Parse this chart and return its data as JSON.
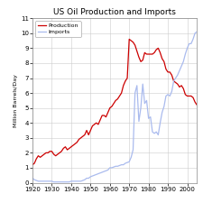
{
  "title": "US Oil Production and Imports",
  "ylabel": "Million Barrels/Day",
  "xlim": [
    1920,
    2005
  ],
  "ylim": [
    0,
    11
  ],
  "yticks": [
    0,
    1,
    2,
    3,
    4,
    5,
    6,
    7,
    8,
    9,
    10,
    11
  ],
  "xticks": [
    1920,
    1930,
    1940,
    1950,
    1960,
    1970,
    1980,
    1990,
    2000
  ],
  "production_color": "#cc0000",
  "imports_color": "#aabbee",
  "bg_color": "#ffffff",
  "grid_color": "#cccccc",
  "production": [
    [
      1920,
      1.2
    ],
    [
      1921,
      1.3
    ],
    [
      1922,
      1.6
    ],
    [
      1923,
      1.8
    ],
    [
      1924,
      1.7
    ],
    [
      1925,
      1.8
    ],
    [
      1926,
      1.9
    ],
    [
      1927,
      2.0
    ],
    [
      1928,
      2.0
    ],
    [
      1929,
      2.1
    ],
    [
      1930,
      2.1
    ],
    [
      1931,
      1.9
    ],
    [
      1932,
      1.8
    ],
    [
      1933,
      1.9
    ],
    [
      1934,
      2.0
    ],
    [
      1935,
      2.1
    ],
    [
      1936,
      2.3
    ],
    [
      1937,
      2.4
    ],
    [
      1938,
      2.2
    ],
    [
      1939,
      2.3
    ],
    [
      1940,
      2.4
    ],
    [
      1941,
      2.5
    ],
    [
      1942,
      2.6
    ],
    [
      1943,
      2.7
    ],
    [
      1944,
      2.9
    ],
    [
      1945,
      3.0
    ],
    [
      1946,
      3.1
    ],
    [
      1947,
      3.2
    ],
    [
      1948,
      3.5
    ],
    [
      1949,
      3.2
    ],
    [
      1950,
      3.5
    ],
    [
      1951,
      3.8
    ],
    [
      1952,
      3.9
    ],
    [
      1953,
      4.0
    ],
    [
      1954,
      3.9
    ],
    [
      1955,
      4.2
    ],
    [
      1956,
      4.5
    ],
    [
      1957,
      4.5
    ],
    [
      1958,
      4.4
    ],
    [
      1959,
      4.7
    ],
    [
      1960,
      5.0
    ],
    [
      1961,
      5.1
    ],
    [
      1962,
      5.3
    ],
    [
      1963,
      5.5
    ],
    [
      1964,
      5.6
    ],
    [
      1965,
      5.8
    ],
    [
      1966,
      6.0
    ],
    [
      1967,
      6.5
    ],
    [
      1968,
      6.8
    ],
    [
      1969,
      7.0
    ],
    [
      1970,
      9.6
    ],
    [
      1971,
      9.5
    ],
    [
      1972,
      9.4
    ],
    [
      1973,
      9.2
    ],
    [
      1974,
      8.8
    ],
    [
      1975,
      8.4
    ],
    [
      1976,
      8.1
    ],
    [
      1977,
      8.2
    ],
    [
      1978,
      8.7
    ],
    [
      1979,
      8.6
    ],
    [
      1980,
      8.6
    ],
    [
      1981,
      8.6
    ],
    [
      1982,
      8.6
    ],
    [
      1983,
      8.7
    ],
    [
      1984,
      8.9
    ],
    [
      1985,
      9.0
    ],
    [
      1986,
      8.7
    ],
    [
      1987,
      8.3
    ],
    [
      1988,
      8.1
    ],
    [
      1989,
      7.6
    ],
    [
      1990,
      7.4
    ],
    [
      1991,
      7.4
    ],
    [
      1992,
      7.2
    ],
    [
      1993,
      6.8
    ],
    [
      1994,
      6.7
    ],
    [
      1995,
      6.6
    ],
    [
      1996,
      6.4
    ],
    [
      1997,
      6.5
    ],
    [
      1998,
      6.3
    ],
    [
      1999,
      5.9
    ],
    [
      2000,
      5.8
    ],
    [
      2001,
      5.8
    ],
    [
      2002,
      5.8
    ],
    [
      2003,
      5.7
    ],
    [
      2004,
      5.4
    ],
    [
      2005,
      5.2
    ]
  ],
  "imports": [
    [
      1920,
      0.3
    ],
    [
      1921,
      0.2
    ],
    [
      1922,
      0.15
    ],
    [
      1923,
      0.1
    ],
    [
      1924,
      0.1
    ],
    [
      1925,
      0.1
    ],
    [
      1926,
      0.1
    ],
    [
      1927,
      0.1
    ],
    [
      1928,
      0.1
    ],
    [
      1929,
      0.1
    ],
    [
      1930,
      0.1
    ],
    [
      1931,
      0.05
    ],
    [
      1932,
      0.05
    ],
    [
      1933,
      0.05
    ],
    [
      1934,
      0.05
    ],
    [
      1935,
      0.05
    ],
    [
      1936,
      0.05
    ],
    [
      1937,
      0.05
    ],
    [
      1938,
      0.05
    ],
    [
      1939,
      0.05
    ],
    [
      1940,
      0.1
    ],
    [
      1941,
      0.1
    ],
    [
      1942,
      0.1
    ],
    [
      1943,
      0.1
    ],
    [
      1944,
      0.1
    ],
    [
      1945,
      0.1
    ],
    [
      1946,
      0.15
    ],
    [
      1947,
      0.2
    ],
    [
      1948,
      0.3
    ],
    [
      1949,
      0.3
    ],
    [
      1950,
      0.4
    ],
    [
      1951,
      0.45
    ],
    [
      1952,
      0.5
    ],
    [
      1953,
      0.55
    ],
    [
      1954,
      0.6
    ],
    [
      1955,
      0.65
    ],
    [
      1956,
      0.7
    ],
    [
      1957,
      0.75
    ],
    [
      1958,
      0.8
    ],
    [
      1959,
      0.85
    ],
    [
      1960,
      1.0
    ],
    [
      1961,
      1.0
    ],
    [
      1962,
      1.05
    ],
    [
      1963,
      1.1
    ],
    [
      1964,
      1.1
    ],
    [
      1965,
      1.15
    ],
    [
      1966,
      1.2
    ],
    [
      1967,
      1.2
    ],
    [
      1968,
      1.3
    ],
    [
      1969,
      1.35
    ],
    [
      1970,
      1.4
    ],
    [
      1971,
      1.7
    ],
    [
      1972,
      2.2
    ],
    [
      1973,
      6.0
    ],
    [
      1974,
      6.5
    ],
    [
      1975,
      4.1
    ],
    [
      1976,
      5.0
    ],
    [
      1977,
      6.6
    ],
    [
      1978,
      5.3
    ],
    [
      1979,
      5.5
    ],
    [
      1980,
      4.3
    ],
    [
      1981,
      4.4
    ],
    [
      1982,
      3.4
    ],
    [
      1983,
      3.3
    ],
    [
      1984,
      3.4
    ],
    [
      1985,
      3.2
    ],
    [
      1986,
      4.0
    ],
    [
      1987,
      4.7
    ],
    [
      1988,
      5.1
    ],
    [
      1989,
      5.8
    ],
    [
      1990,
      5.9
    ],
    [
      1991,
      5.8
    ],
    [
      1992,
      6.1
    ],
    [
      1993,
      6.8
    ],
    [
      1994,
      7.0
    ],
    [
      1995,
      7.2
    ],
    [
      1996,
      7.5
    ],
    [
      1997,
      7.8
    ],
    [
      1998,
      8.1
    ],
    [
      1999,
      8.6
    ],
    [
      2000,
      9.0
    ],
    [
      2001,
      9.3
    ],
    [
      2002,
      9.3
    ],
    [
      2003,
      9.6
    ],
    [
      2004,
      10.0
    ],
    [
      2005,
      10.1
    ]
  ]
}
